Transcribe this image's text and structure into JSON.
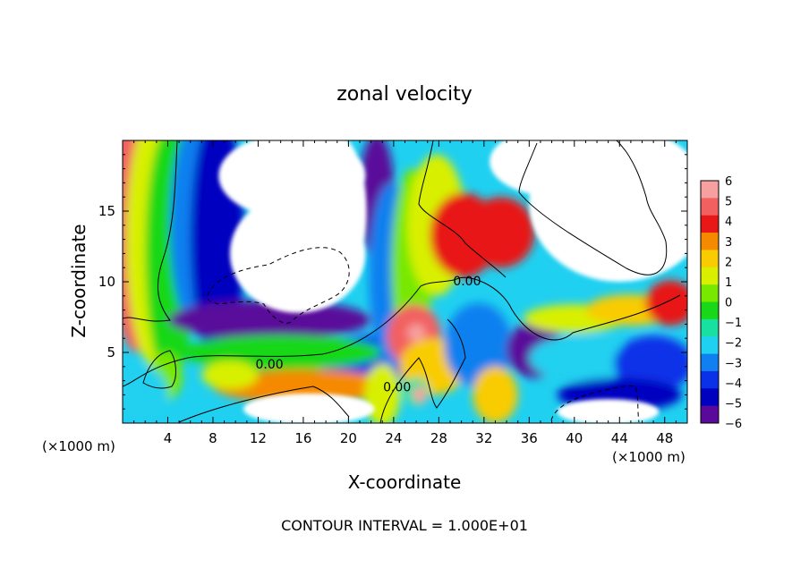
{
  "chart_data": {
    "type": "heatmap",
    "title": "zonal velocity",
    "xlabel": "X-coordinate",
    "ylabel": "Z-coordinate",
    "x_unit_left": "(×1000 m)",
    "x_unit_right": "(×1000 m)",
    "footer": "CONTOUR INTERVAL = 1.000E+01",
    "xlim": [
      0,
      50
    ],
    "ylim": [
      0,
      20
    ],
    "x_ticks": [
      4,
      8,
      12,
      16,
      20,
      24,
      28,
      32,
      36,
      40,
      44,
      48
    ],
    "y_ticks": [
      5,
      10,
      15
    ],
    "colorbar": {
      "range": [
        -6,
        6
      ],
      "labels": [
        "6",
        "5",
        "4",
        "3",
        "2",
        "1",
        "0",
        "−1",
        "−2",
        "−3",
        "−4",
        "−5",
        "−6"
      ],
      "colors": [
        "#f7a0a0",
        "#f26060",
        "#e81818",
        "#f58a00",
        "#f8cc00",
        "#d8f000",
        "#78e800",
        "#18d818",
        "#18e0a0",
        "#20d0f0",
        "#1080f0",
        "#0a30e8",
        "#0000c0",
        "#5a0a9a"
      ]
    },
    "contour_labels": [
      {
        "text": "0.00",
        "x": 13,
        "z": 4.1
      },
      {
        "text": "0.00",
        "x": 30.5,
        "z": 10.0
      },
      {
        "text": "0.00",
        "x": 24.3,
        "z": 2.5
      }
    ],
    "field_blobs": [
      {
        "x": 1.3,
        "z": 14,
        "rx": 2.6,
        "rz": 9,
        "v": 4.5
      },
      {
        "x": 2.8,
        "z": 13,
        "rx": 2.5,
        "rz": 9,
        "v": 1.5
      },
      {
        "x": 4.2,
        "z": 12,
        "rx": 2.2,
        "rz": 9,
        "v": -0.5
      },
      {
        "x": 6.2,
        "z": 14,
        "rx": 2.0,
        "rz": 7,
        "v": -3.0
      },
      {
        "x": 8.4,
        "z": 13,
        "rx": 2.4,
        "rz": 9,
        "v": -4.8
      },
      {
        "x": 13.0,
        "z": 7.3,
        "rx": 9.0,
        "rz": 1.4,
        "v": -5.8
      },
      {
        "x": 22.0,
        "z": 4.6,
        "rx": 5.0,
        "rz": 1.6,
        "v": -4.0
      },
      {
        "x": 14.0,
        "z": 5.0,
        "rx": 9.0,
        "rz": 1.2,
        "v": -0.3
      },
      {
        "x": 16.0,
        "z": 2.6,
        "rx": 8.0,
        "rz": 1.2,
        "v": 3.2
      },
      {
        "x": 9.5,
        "z": 3.4,
        "rx": 2.5,
        "rz": 1.0,
        "v": 1.5
      },
      {
        "x": 3.8,
        "z": 3.3,
        "rx": 1.5,
        "rz": 1.7,
        "v": 0.8
      },
      {
        "x": 1.8,
        "z": 2.0,
        "rx": 2.2,
        "rz": 2.0,
        "v": -2.5
      },
      {
        "x": 22.5,
        "z": 16.0,
        "rx": 1.6,
        "rz": 4.5,
        "v": -6.0
      },
      {
        "x": 23.8,
        "z": 10.5,
        "rx": 2.0,
        "rz": 6.5,
        "v": -3.0
      },
      {
        "x": 25.6,
        "z": 11.0,
        "rx": 1.8,
        "rz": 7.0,
        "v": 0.5
      },
      {
        "x": 27.8,
        "z": 14.0,
        "rx": 2.6,
        "rz": 5.0,
        "v": 1.5
      },
      {
        "x": 30.2,
        "z": 13.3,
        "rx": 3.0,
        "rz": 3.0,
        "v": 4.0
      },
      {
        "x": 33.5,
        "z": 13.5,
        "rx": 3.0,
        "rz": 2.5,
        "v": 3.5
      },
      {
        "x": 25.8,
        "z": 6.2,
        "rx": 2.4,
        "rz": 2.2,
        "v": 4.8
      },
      {
        "x": 26.0,
        "z": 6.4,
        "rx": 0.8,
        "rz": 0.6,
        "v": 6.5
      },
      {
        "x": 27.5,
        "z": 4.0,
        "rx": 3.0,
        "rz": 2.0,
        "v": 2.0
      },
      {
        "x": 26.0,
        "z": 2.2,
        "rx": 1.2,
        "rz": 1.0,
        "v": -1.0
      },
      {
        "x": 26.3,
        "z": 2.0,
        "rx": 0.6,
        "rz": 0.6,
        "v": 6.0
      },
      {
        "x": 23.0,
        "z": 2.0,
        "rx": 1.6,
        "rz": 2.2,
        "v": 1.0
      },
      {
        "x": 31.5,
        "z": 5.5,
        "rx": 3.0,
        "rz": 3.0,
        "v": -3.2
      },
      {
        "x": 33.0,
        "z": 2.0,
        "rx": 2.0,
        "rz": 2.0,
        "v": 2.0
      },
      {
        "x": 36.5,
        "z": 5.2,
        "rx": 2.5,
        "rz": 2.0,
        "v": -5.5
      },
      {
        "x": 40.0,
        "z": 7.4,
        "rx": 4.5,
        "rz": 1.0,
        "v": 1.0
      },
      {
        "x": 45.0,
        "z": 8.0,
        "rx": 4.0,
        "rz": 1.1,
        "v": 2.5
      },
      {
        "x": 48.5,
        "z": 8.5,
        "rx": 2.2,
        "rz": 1.6,
        "v": 4.0
      },
      {
        "x": 40.5,
        "z": 4.6,
        "rx": 4.5,
        "rz": 1.6,
        "v": -2.0
      },
      {
        "x": 47.0,
        "z": 4.2,
        "rx": 3.5,
        "rz": 2.0,
        "v": -3.5
      },
      {
        "x": 44.0,
        "z": 2.0,
        "rx": 5.5,
        "rz": 1.2,
        "v": -5.0
      }
    ],
    "white_regions": [
      {
        "x": 15.5,
        "z": 12.0,
        "rx": 6.0,
        "rz": 4.2
      },
      {
        "x": 15.0,
        "z": 17.5,
        "rx": 6.5,
        "rz": 3.0
      },
      {
        "x": 18.8,
        "z": 15.0,
        "rx": 2.8,
        "rz": 5.5
      },
      {
        "x": 44.0,
        "z": 15.5,
        "rx": 8.0,
        "rz": 5.5
      },
      {
        "x": 38.5,
        "z": 18.5,
        "rx": 6.0,
        "rz": 2.5
      },
      {
        "x": 16.5,
        "z": 1.0,
        "rx": 5.8,
        "rz": 1.1
      },
      {
        "x": 43.0,
        "z": 0.8,
        "rx": 4.5,
        "rz": 0.9
      }
    ]
  }
}
